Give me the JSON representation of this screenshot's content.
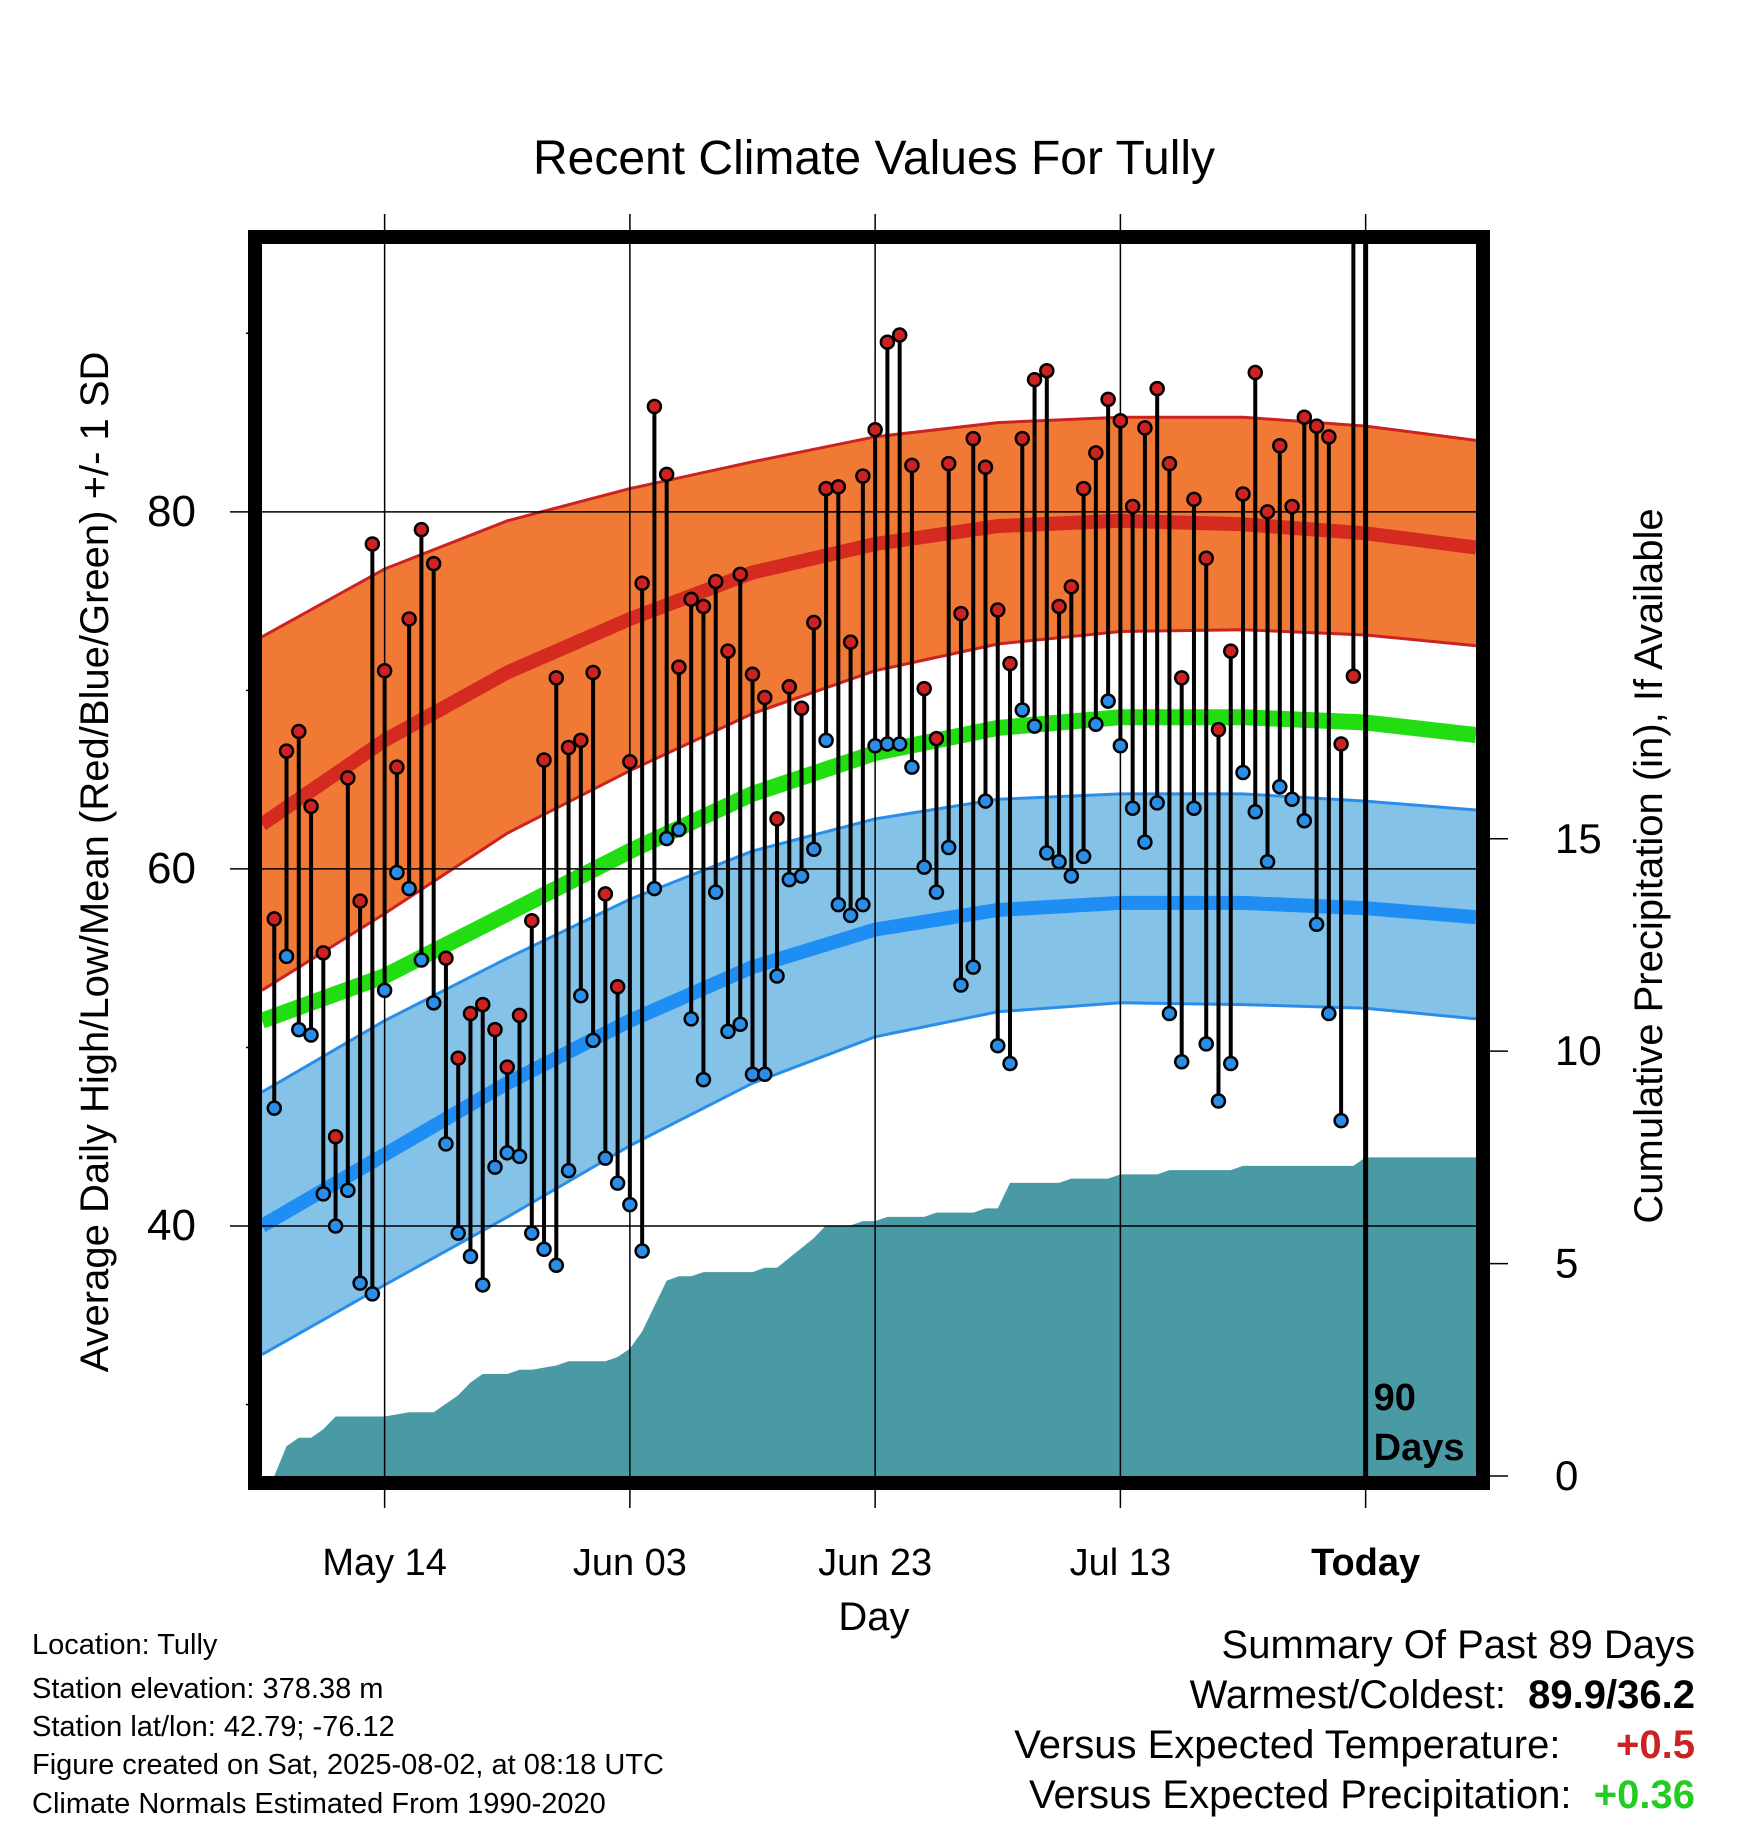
{
  "chart_data": {
    "type": "line",
    "title": "Recent Climate Values For Tully",
    "xlabel": "Day",
    "ylabel": "Average Daily High/Low/Mean (Red/Blue/Green) +/- 1 SD",
    "y2label": "Cumulative Precipitation (in), If Available",
    "x_tick_labels": [
      "May 14",
      "Jun 03",
      "Jun 23",
      "Jul 13",
      "Today"
    ],
    "y_ticks": [
      40,
      60,
      80
    ],
    "y2_ticks": [
      0,
      5,
      10,
      15
    ],
    "ylim": [
      26,
      95
    ],
    "y2lim": [
      0,
      29
    ],
    "xlim_days": [
      0,
      99
    ],
    "today_day": 90,
    "today_marker_label": "90\nDays",
    "normals": {
      "x": [
        0,
        10,
        20,
        30,
        40,
        50,
        60,
        70,
        80,
        90,
        99
      ],
      "high_mean": [
        62.5,
        67.2,
        71,
        74,
        76.6,
        78.2,
        79.2,
        79.5,
        79.3,
        78.8,
        78
      ],
      "high_sd_upper": [
        73,
        76.8,
        79.5,
        81.3,
        82.8,
        84.2,
        85,
        85.3,
        85.3,
        84.8,
        84
      ],
      "high_sd_lower": [
        53.2,
        57.5,
        62,
        65.5,
        68.7,
        71.1,
        72.6,
        73.3,
        73.4,
        73.1,
        72.5
      ],
      "mean": [
        51.5,
        54,
        57.5,
        61,
        64.2,
        66.5,
        67.9,
        68.5,
        68.5,
        68.2,
        67.5
      ],
      "low_mean": [
        40,
        44,
        48,
        51.5,
        54.5,
        56.6,
        57.7,
        58.1,
        58.1,
        57.8,
        57.3
      ],
      "low_sd_upper": [
        47.5,
        51.5,
        55,
        58.3,
        61,
        62.8,
        63.9,
        64.2,
        64.2,
        63.8,
        63.3
      ],
      "low_sd_lower": [
        32.8,
        36.7,
        40.5,
        44.5,
        48,
        50.6,
        52,
        52.5,
        52.4,
        52.2,
        51.6
      ]
    },
    "series": [
      {
        "name": "High",
        "color": "#cc2222",
        "values": [
          57.2,
          66.6,
          67.7,
          63.5,
          55.3,
          45,
          65.1,
          58.2,
          78.2,
          71.1,
          65.7,
          74,
          79,
          77.1,
          55,
          49.4,
          51.9,
          52.4,
          51,
          48.9,
          51.8,
          57.1,
          66.1,
          70.7,
          66.8,
          67.2,
          71,
          58.6,
          53.4,
          66,
          76,
          85.9,
          82.1,
          71.3,
          75.1,
          74.7,
          76.1,
          72.2,
          76.5,
          70.9,
          69.6,
          62.8,
          70.2,
          69,
          73.8,
          81.3,
          81.4,
          72.7,
          82,
          84.6,
          89.5,
          89.9,
          82.6,
          70.1,
          67.3,
          82.7,
          74.3,
          84.1,
          82.5,
          74.5,
          71.5,
          84.1,
          87.4,
          87.9,
          74.7,
          75.8,
          81.3,
          83.3,
          86.3,
          85.1,
          80.3,
          84.7,
          86.9,
          82.7,
          70.7,
          80.7,
          77.4,
          67.8,
          72.2,
          81,
          87.8,
          80,
          83.7,
          80.3,
          85.3,
          84.8,
          84.2,
          67,
          70.8
        ]
      },
      {
        "name": "Low",
        "color": "#2a8ee8",
        "values": [
          46.6,
          55.1,
          51,
          50.7,
          41.8,
          40,
          42,
          36.8,
          36.2,
          53.2,
          59.8,
          58.9,
          54.9,
          52.5,
          44.6,
          39.6,
          38.3,
          36.7,
          43.3,
          44.1,
          43.9,
          39.6,
          38.7,
          37.8,
          43.1,
          52.9,
          50.4,
          43.8,
          42.4,
          41.2,
          38.6,
          58.9,
          61.7,
          62.2,
          51.6,
          48.2,
          58.7,
          50.9,
          51.3,
          48.5,
          48.5,
          54,
          59.4,
          59.6,
          61.1,
          67.2,
          58,
          57.4,
          58,
          66.9,
          67,
          67,
          65.7,
          60.1,
          58.7,
          61.2,
          53.5,
          54.5,
          63.8,
          50.1,
          49.1,
          68.9,
          68,
          60.9,
          60.4,
          59.6,
          60.7,
          68.1,
          69.4,
          66.9,
          63.4,
          61.5,
          63.7,
          51.9,
          49.2,
          63.4,
          50.2,
          47,
          49.1,
          65.4,
          63.2,
          60.4,
          64.6,
          63.9,
          62.7,
          56.9,
          51.9,
          45.9
        ]
      }
    ],
    "precip_cumulative": {
      "x": [
        1,
        2,
        3,
        4,
        5,
        6,
        10,
        12,
        13,
        14,
        15,
        16,
        17,
        18,
        19,
        20,
        21,
        22,
        24,
        25,
        26,
        27,
        28,
        29,
        30,
        31,
        32,
        33,
        34,
        35,
        36,
        37,
        38,
        39,
        40,
        41,
        42,
        45,
        46,
        47,
        48,
        49,
        50,
        51,
        52,
        53,
        54,
        55,
        56,
        57,
        58,
        59,
        60,
        61,
        62,
        63,
        64,
        65,
        66,
        67,
        68,
        69,
        70,
        71,
        72,
        73,
        74,
        75,
        76,
        77,
        78,
        79,
        80,
        81,
        82,
        83,
        84,
        85,
        86,
        87,
        88,
        89,
        90,
        99
      ],
      "values": [
        0,
        0.7,
        0.9,
        0.9,
        1.1,
        1.4,
        1.4,
        1.5,
        1.5,
        1.5,
        1.7,
        1.9,
        2.2,
        2.4,
        2.4,
        2.4,
        2.5,
        2.5,
        2.6,
        2.7,
        2.7,
        2.7,
        2.7,
        2.8,
        3.0,
        3.4,
        4.0,
        4.6,
        4.7,
        4.7,
        4.8,
        4.8,
        4.8,
        4.8,
        4.8,
        4.9,
        4.9,
        5.6,
        5.9,
        5.9,
        5.9,
        6.0,
        6.0,
        6.1,
        6.1,
        6.1,
        6.1,
        6.2,
        6.2,
        6.2,
        6.2,
        6.3,
        6.3,
        6.9,
        6.9,
        6.9,
        6.9,
        6.9,
        7.0,
        7.0,
        7.0,
        7.0,
        7.1,
        7.1,
        7.1,
        7.1,
        7.2,
        7.2,
        7.2,
        7.2,
        7.2,
        7.2,
        7.3,
        7.3,
        7.3,
        7.3,
        7.3,
        7.3,
        7.3,
        7.3,
        7.3,
        7.3,
        7.5,
        7.5
      ],
      "color": "#4a9aa5"
    },
    "colors": {
      "high_band": "#f07a35",
      "high_line": "#d42a20",
      "mean_line": "#22dd11",
      "low_band": "#85c2e8",
      "low_line": "#1e8ef5",
      "low_edge": "#2a8ee8"
    }
  },
  "info": {
    "location": "Location: Tully",
    "elevation": "Station elevation: 378.38 m",
    "latlon": "Station lat/lon: 42.79; -76.12",
    "created": "Figure created on Sat, 2025-08-02, at 08:18 UTC",
    "normals": "Climate Normals Estimated From 1990-2020"
  },
  "summary": {
    "heading": "Summary Of Past 89 Days",
    "warm_cold_label": "Warmest/Coldest:",
    "warm_cold_value": "89.9/36.2",
    "temp_label": "Versus Expected Temperature:",
    "temp_value": "+0.5",
    "temp_color": "#cc2222",
    "precip_label": "Versus Expected Precipitation:",
    "precip_value": "+0.36",
    "precip_color": "#22cc22"
  }
}
